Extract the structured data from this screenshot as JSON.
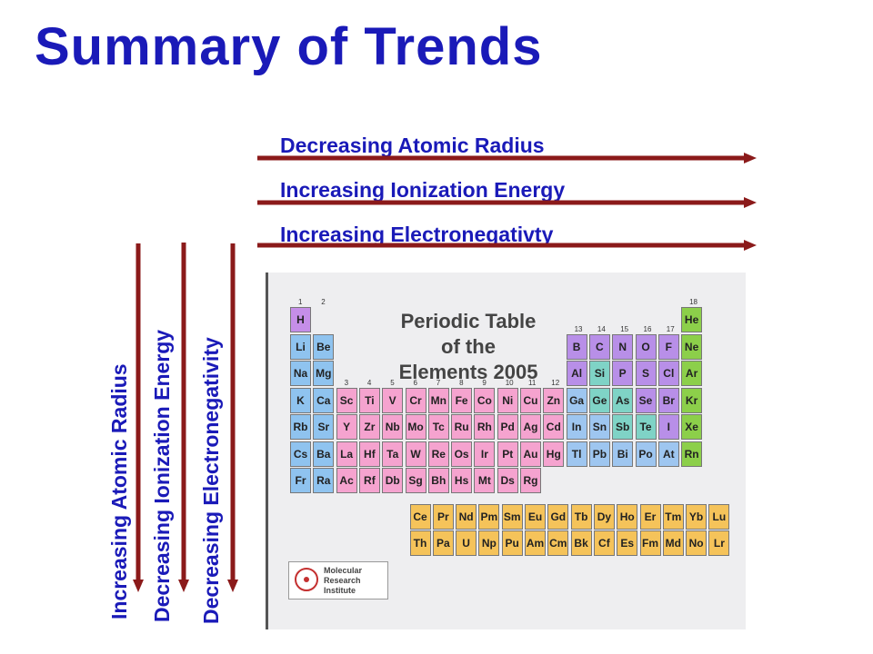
{
  "title": "Summary of Trends",
  "horizontal_trends": [
    "Decreasing Atomic Radius",
    "Increasing Ionization Energy",
    "Increasing Electronegativty"
  ],
  "vertical_trends": [
    "Increasing Atomic Radius",
    "Decreasing Ionization Energy",
    "Decreasing Electronegativity"
  ],
  "arrow_color": "#8b1a1a",
  "text_color": "#1a1ab8",
  "periodic_table": {
    "title_lines": [
      "Periodic Table",
      "of the",
      "Elements 2005"
    ],
    "publisher": [
      "Molecular",
      "Research",
      "Institute"
    ],
    "group_numbers": [
      "1",
      "2",
      "3",
      "4",
      "5",
      "6",
      "7",
      "8",
      "9",
      "10",
      "11",
      "12",
      "13",
      "14",
      "15",
      "16",
      "17",
      "18"
    ],
    "rows": [
      [
        "H",
        "",
        "",
        "",
        "",
        "",
        "",
        "",
        "",
        "",
        "",
        "",
        "",
        "",
        "",
        "",
        "",
        "He"
      ],
      [
        "Li",
        "Be",
        "",
        "",
        "",
        "",
        "",
        "",
        "",
        "",
        "",
        "",
        "B",
        "C",
        "N",
        "O",
        "F",
        "Ne"
      ],
      [
        "Na",
        "Mg",
        "",
        "",
        "",
        "",
        "",
        "",
        "",
        "",
        "",
        "",
        "Al",
        "Si",
        "P",
        "S",
        "Cl",
        "Ar"
      ],
      [
        "K",
        "Ca",
        "Sc",
        "Ti",
        "V",
        "Cr",
        "Mn",
        "Fe",
        "Co",
        "Ni",
        "Cu",
        "Zn",
        "Ga",
        "Ge",
        "As",
        "Se",
        "Br",
        "Kr"
      ],
      [
        "Rb",
        "Sr",
        "Y",
        "Zr",
        "Nb",
        "Mo",
        "Tc",
        "Ru",
        "Rh",
        "Pd",
        "Ag",
        "Cd",
        "In",
        "Sn",
        "Sb",
        "Te",
        "I",
        "Xe"
      ],
      [
        "Cs",
        "Ba",
        "La",
        "Hf",
        "Ta",
        "W",
        "Re",
        "Os",
        "Ir",
        "Pt",
        "Au",
        "Hg",
        "Tl",
        "Pb",
        "Bi",
        "Po",
        "At",
        "Rn"
      ],
      [
        "Fr",
        "Ra",
        "Ac",
        "Rf",
        "Db",
        "Sg",
        "Bh",
        "Hs",
        "Mt",
        "Ds",
        "Rg",
        "",
        "",
        "",
        "",
        "",
        "",
        ""
      ]
    ],
    "lanthanides": [
      "Ce",
      "Pr",
      "Nd",
      "Pm",
      "Sm",
      "Eu",
      "Gd",
      "Tb",
      "Dy",
      "Ho",
      "Er",
      "Tm",
      "Yb",
      "Lu"
    ],
    "actinides": [
      "Th",
      "Pa",
      "U",
      "Np",
      "Pu",
      "Am",
      "Cm",
      "Bk",
      "Cf",
      "Es",
      "Fm",
      "Md",
      "No",
      "Lr"
    ],
    "colors": {
      "hydrogen": "#c58ee8",
      "alkali": "#8fc3ef",
      "transition": "#f5a3cf",
      "p_block": "#b88fe8",
      "metalloid": "#7fd3c6",
      "noble": "#8ccf4a",
      "f_block": "#f5c35a",
      "post_transition": "#9ec6f0"
    }
  }
}
